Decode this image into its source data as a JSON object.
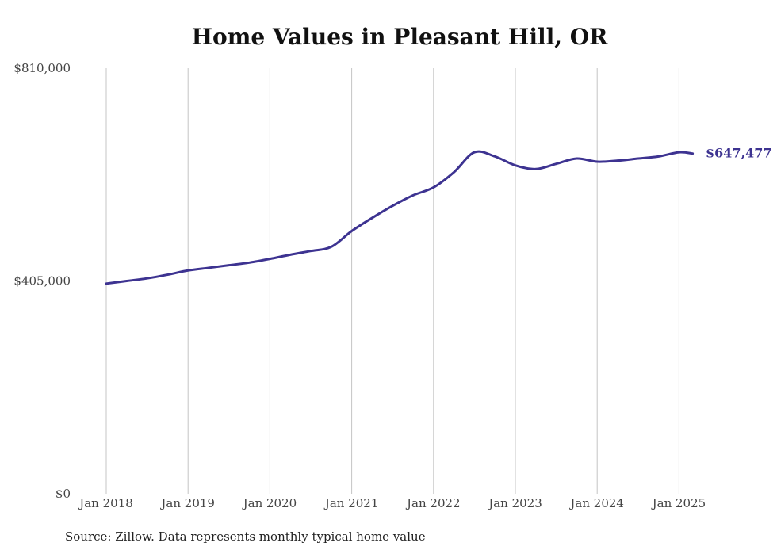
{
  "chart_data": {
    "type": "line",
    "title": "Home Values in Pleasant Hill, OR",
    "xlabel": "",
    "ylabel": "",
    "x_ticks": [
      "Jan 2018",
      "Jan 2019",
      "Jan 2020",
      "Jan 2021",
      "Jan 2022",
      "Jan 2023",
      "Jan 2024",
      "Jan 2025"
    ],
    "y_ticks": [
      "$0",
      "$405,000",
      "$810,000"
    ],
    "ylim": [
      0,
      810000
    ],
    "xlim": [
      "2018-01",
      "2025-03"
    ],
    "grid": "vertical",
    "series": [
      {
        "color": "#3d3391",
        "end_label": "$647,477",
        "points": [
          [
            "2018-01",
            400000
          ],
          [
            "2018-04",
            405000
          ],
          [
            "2018-07",
            410000
          ],
          [
            "2018-10",
            417000
          ],
          [
            "2019-01",
            425000
          ],
          [
            "2019-04",
            430000
          ],
          [
            "2019-07",
            435000
          ],
          [
            "2019-10",
            440000
          ],
          [
            "2020-01",
            447000
          ],
          [
            "2020-04",
            455000
          ],
          [
            "2020-07",
            462000
          ],
          [
            "2020-10",
            470000
          ],
          [
            "2021-01",
            500000
          ],
          [
            "2021-04",
            525000
          ],
          [
            "2021-07",
            548000
          ],
          [
            "2021-10",
            568000
          ],
          [
            "2022-01",
            583000
          ],
          [
            "2022-04",
            612000
          ],
          [
            "2022-07",
            650000
          ],
          [
            "2022-10",
            642000
          ],
          [
            "2023-01",
            625000
          ],
          [
            "2023-04",
            618000
          ],
          [
            "2023-07",
            628000
          ],
          [
            "2023-10",
            638000
          ],
          [
            "2024-01",
            632000
          ],
          [
            "2024-04",
            634000
          ],
          [
            "2024-07",
            638000
          ],
          [
            "2024-10",
            642000
          ],
          [
            "2025-01",
            650000
          ],
          [
            "2025-03",
            647477
          ]
        ]
      }
    ]
  },
  "source": "Source: Zillow. Data represents monthly typical home value"
}
